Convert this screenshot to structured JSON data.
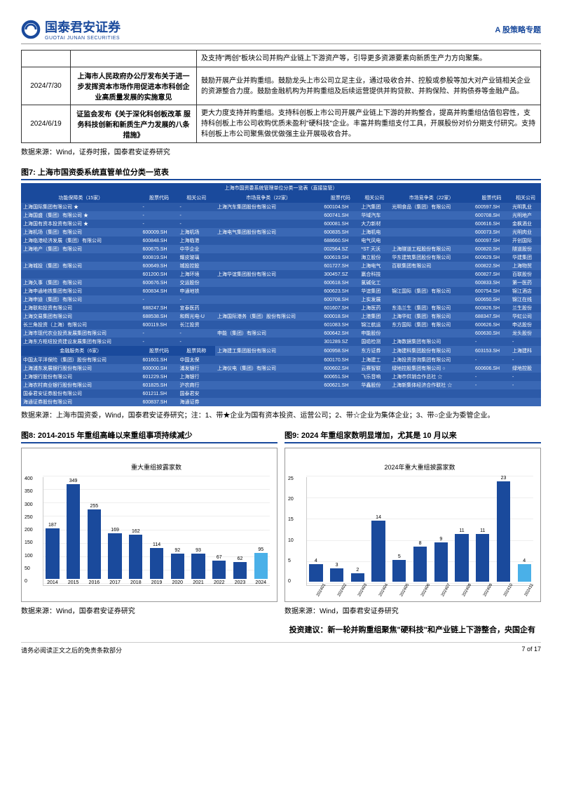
{
  "header": {
    "logo_text": "国泰君安证券",
    "logo_sub": "GUOTAI JUNAN SECURITIES",
    "topic": "A 股策略专题"
  },
  "policy_table": {
    "rows": [
      {
        "date": "",
        "title": "",
        "content": "及支持\"两创\"板块公司并购产业链上下游资产等，引导更多资源要素向新质生产力方向聚集。"
      },
      {
        "date": "2024/7/30",
        "title": "上海市人民政府办公厅发布关于进一步发挥资本市场作用促进本市科创企业高质量发展的实施意见",
        "content": "鼓励开展产业并购重组。鼓励龙头上市公司立足主业，通过吸收合并、控股或参股等加大对产业链相关企业的资源整合力度。鼓励金融机构为并购重组及后续运营提供并购贷款、并购保险、并购债券等金融产品。"
      },
      {
        "date": "2024/6/19",
        "title": "证监会发布《关于深化科创板改革 服务科技创新和新质生产力发展的八条措施》",
        "content": "更大力度支持并购重组。支持科创板上市公司开展产业链上下游的并购整合，提高并购重组估值包容性，支持科创板上市公司收购优质未盈利\"硬科技\"企业。丰富并购重组支付工具，开展股份对价分期支付研究。支持科创板上市公司聚焦做优做强主业开展吸收合并。"
      }
    ],
    "source": "数据来源：Wind，证券时报，国泰君安证券研究"
  },
  "fig7": {
    "title": "图7: 上海市国资委系统直管单位分类一览表",
    "header_title": "上海市国资委系统管理单位分类一览表（直接监管）",
    "col_headers": [
      "功能保障类（15家）",
      "股票代码",
      "相关公司",
      "市场竞争类（22家）",
      "股票代码",
      "相关公司",
      "市场竞争类（22家）",
      "股票代码",
      "相关公司"
    ],
    "mid_headers": [
      "金融服务类（6家）",
      "股票代码",
      "股票简称"
    ],
    "rows_left": [
      [
        "上海国际集团有限公司 ★",
        "-",
        "-"
      ],
      [
        "上海国盛（集团）有限公司 ★",
        "-",
        "-"
      ],
      [
        "上海国有资本投资有限公司 ★",
        "-",
        "-"
      ],
      [
        "上海机场（集团）有限公司",
        "600009.SH",
        "上海机场"
      ],
      [
        "上海临港经济发展（集团）有限公司",
        "600848.SH",
        "上海临港"
      ],
      [
        "上海地产（集团）有限公司",
        "600675.SH",
        "中华企业"
      ],
      [
        "",
        "600819.SH",
        "耀皮玻璃"
      ],
      [
        "上海城投（集团）有限公司",
        "600649.SH",
        "城投控股"
      ],
      [
        "",
        "601200.SH",
        "上海环境"
      ],
      [
        "上海久事（集团）有限公司",
        "600676.SH",
        "交运股份"
      ],
      [
        "上海申通地铁集团有限公司",
        "600834.SH",
        "申通地铁"
      ],
      [
        "上海申迪（集团）有限公司",
        "-",
        "-"
      ],
      [
        "上海联和投资有限公司",
        "688247.SH",
        "宣泰医药"
      ],
      [
        "上海交易集团有限公司",
        "688538.SH",
        "和辉光电-U"
      ],
      [
        "长三角投资（上海）有限公司",
        "600119.SH",
        "长江投资"
      ],
      [
        "上海市现代农业投资发展集团有限公司",
        "-",
        "-"
      ],
      [
        "上海东方枢纽投资建设发展集团有限公司",
        "-",
        "-"
      ]
    ],
    "rows_left2": [
      [
        "中国太平洋保险（集团）股份有限公司",
        "601601.SH",
        "中国太保"
      ],
      [
        "上海浦东发展银行股份有限公司",
        "600000.SH",
        "浦发银行"
      ],
      [
        "上海银行股份有限公司",
        "601229.SH",
        "上海银行"
      ],
      [
        "上海农村商业银行股份有限公司",
        "601825.SH",
        "沪农商行"
      ],
      [
        "国泰君安证券股份有限公司",
        "601211.SH",
        "国泰君安"
      ],
      [
        "海通证券股份有限公司",
        "600837.SH",
        "海通证券"
      ]
    ],
    "rows_mid": [
      [
        "上海汽车集团股份有限公司",
        "600104.SH",
        "上汽集团"
      ],
      [
        "",
        "600741.SH",
        "华域汽车"
      ],
      [
        "",
        "600081.SH",
        "大力新材"
      ],
      [
        "上海电气集团股份有限公司",
        "600835.SH",
        "上海机电"
      ],
      [
        "",
        "688660.SH",
        "电气风电"
      ],
      [
        "",
        "002564.SZ",
        "*ST 天沃"
      ],
      [
        "",
        "600619.SH",
        "海立股份"
      ],
      [
        "",
        "601727.SH",
        "上海电气"
      ],
      [
        "上海华谊集团股份有限公司",
        "300457.SZ",
        "赢合科技"
      ],
      [
        "",
        "600618.SH",
        "氯碱化工"
      ],
      [
        "",
        "600623.SH",
        "华谊集团"
      ],
      [
        "",
        "600708.SH",
        "上实发展"
      ],
      [
        "",
        "601607.SH",
        "上海医药"
      ],
      [
        "上海国际港务（集团）股份有限公司",
        "600018.SH",
        "上港集团"
      ],
      [
        "",
        "601083.SH",
        "锦江航运"
      ],
      [
        "申能（集团）有限公司",
        "600642.SH",
        "申能股份"
      ],
      [
        "",
        "301289.SZ",
        "国缆检测"
      ],
      [
        "上海建工集团股份有限公司",
        "600958.SH",
        "东方证券"
      ],
      [
        "",
        "600170.SH",
        "上海建工"
      ],
      [
        "上海仪电（集团）有限公司",
        "600602.SH",
        "云赛智联"
      ],
      [
        "",
        "600651.SH",
        "飞乐音响"
      ],
      [
        "",
        "600621.SH",
        "华鑫股份"
      ]
    ],
    "rows_right": [
      [
        "光明食品（集团）有限公司",
        "600597.SH",
        "光明乳业"
      ],
      [
        "",
        "600708.SH",
        "光明地产"
      ],
      [
        "",
        "600616.SH",
        "金枫酒业"
      ],
      [
        "",
        "600073.SH",
        "光明肉业"
      ],
      [
        "",
        "600097.SH",
        "开创国际"
      ],
      [
        "上海隧道工程股份有限公司",
        "600820.SH",
        "隧道股份"
      ],
      [
        "华东建筑集团股份有限公司",
        "600629.SH",
        "华建集团"
      ],
      [
        "百联集团有限公司",
        "600822.SH",
        "上海物贸"
      ],
      [
        "",
        "600827.SH",
        "百联股份"
      ],
      [
        "",
        "600833.SH",
        "第一医药"
      ],
      [
        "锦江国际（集团）有限公司",
        "600754.SH",
        "锦江酒店"
      ],
      [
        "",
        "600650.SH",
        "锦江在线"
      ],
      [
        "东浩兰生（集团）有限公司",
        "600826.SH",
        "兰生股份"
      ],
      [
        "上海华虹（集团）有限公司",
        "688347.SH",
        "华虹公司"
      ],
      [
        "东方国际（集团）有限公司",
        "600626.SH",
        "申达股份"
      ],
      [
        "",
        "600630.SH",
        "龙头股份"
      ],
      [
        "上海数据集团有限公司",
        "-",
        "-"
      ],
      [
        "上海建科集团股份有限公司",
        "603153.SH",
        "上海建科"
      ],
      [
        "上海投资咨询集团有限公司",
        "-",
        "-"
      ],
      [
        "绿地控股集团有限公司 ○",
        "600606.SH",
        "绿地控股"
      ],
      [
        "上海市供销合作总社 ☆",
        "-",
        "-"
      ],
      [
        "上海新集体经济合作联社 ☆",
        "-",
        "-"
      ]
    ],
    "source": "数据来源：上海市国资委，Wind，国泰君安证券研究；注：1、带★企业为国有资本投资、运营公司；2、带☆企业为集体企业；3、带○企业为委管企业。"
  },
  "fig8": {
    "title": "图8: 2014-2015 年重组高峰以来重组事项持续减少",
    "subtitle": "重大重组披露家数",
    "ylim": [
      0,
      400
    ],
    "ytick_step": 50,
    "categories": [
      "2014",
      "2015",
      "2016",
      "2017",
      "2018",
      "2019",
      "2020",
      "2021",
      "2022",
      "2023",
      "2024"
    ],
    "values": [
      187,
      349,
      255,
      169,
      162,
      114,
      92,
      93,
      67,
      62,
      95
    ],
    "bar_color": "#1a4a9c",
    "last_bar_color": "#4ab0e8",
    "source": "数据来源：Wind，国泰君安证券研究"
  },
  "fig9": {
    "title": "图9: 2024 年重组家数明显增加，尤其是 10 月以来",
    "subtitle": "2024年重大重组披露家数",
    "ylim": [
      0,
      25
    ],
    "ytick_step": 5,
    "categories": [
      "202401",
      "202402",
      "202403",
      "202404",
      "202405",
      "202406",
      "202407",
      "202408",
      "202409",
      "202410",
      "202411"
    ],
    "values": [
      4,
      3,
      2,
      14,
      5,
      8,
      9,
      11,
      11,
      23,
      4
    ],
    "bar_color": "#1a4a9c",
    "last_bar_color": "#4ab0e8",
    "source": "数据来源：Wind，国泰君安证券研究"
  },
  "invest_advice": "投资建议：新一轮并购重组聚焦\"硬科技\"和产业链上下游整合，央国企有",
  "footer": {
    "left": "请务必阅读正文之后的免责条款部分",
    "right": "7 of 17"
  }
}
